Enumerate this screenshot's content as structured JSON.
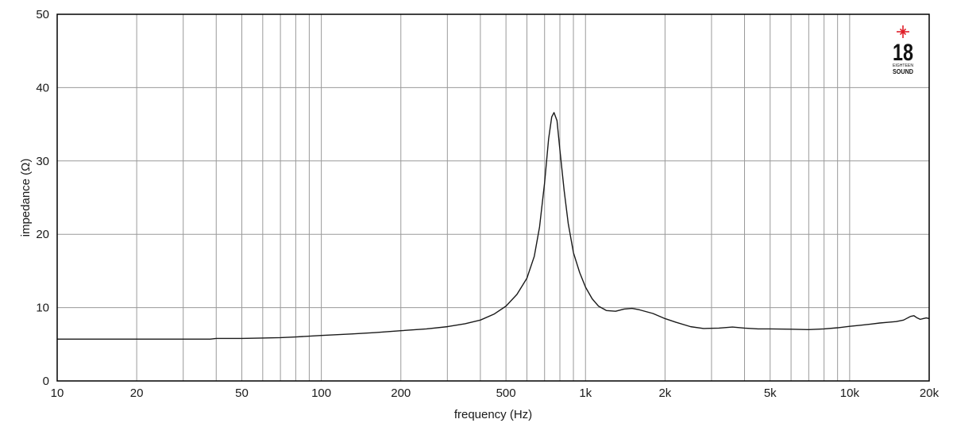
{
  "chart_data": {
    "type": "line",
    "title": "",
    "xlabel": "frequency (Hz)",
    "ylabel": "impedance (Ω)",
    "x_scale": "log",
    "xlim": [
      10,
      20000
    ],
    "ylim": [
      0,
      50
    ],
    "grid": true,
    "x_ticks": [
      {
        "value": 10,
        "label": "10"
      },
      {
        "value": 20,
        "label": "20"
      },
      {
        "value": 50,
        "label": "50"
      },
      {
        "value": 100,
        "label": "100"
      },
      {
        "value": 200,
        "label": "200"
      },
      {
        "value": 500,
        "label": "500"
      },
      {
        "value": 1000,
        "label": "1k"
      },
      {
        "value": 2000,
        "label": "2k"
      },
      {
        "value": 5000,
        "label": "5k"
      },
      {
        "value": 10000,
        "label": "10k"
      },
      {
        "value": 20000,
        "label": "20k"
      }
    ],
    "y_ticks": [
      {
        "value": 0,
        "label": "0"
      },
      {
        "value": 10,
        "label": "10"
      },
      {
        "value": 20,
        "label": "20"
      },
      {
        "value": 30,
        "label": "30"
      },
      {
        "value": 40,
        "label": "40"
      },
      {
        "value": 50,
        "label": "50"
      }
    ],
    "series": [
      {
        "color": "#1a1a1a",
        "points": [
          [
            10,
            5.7
          ],
          [
            20,
            5.7
          ],
          [
            30,
            5.7
          ],
          [
            38,
            5.7
          ],
          [
            40,
            5.8
          ],
          [
            50,
            5.8
          ],
          [
            60,
            5.85
          ],
          [
            70,
            5.9
          ],
          [
            80,
            6.0
          ],
          [
            100,
            6.2
          ],
          [
            130,
            6.4
          ],
          [
            160,
            6.6
          ],
          [
            200,
            6.85
          ],
          [
            250,
            7.1
          ],
          [
            300,
            7.4
          ],
          [
            350,
            7.8
          ],
          [
            400,
            8.3
          ],
          [
            450,
            9.1
          ],
          [
            500,
            10.2
          ],
          [
            550,
            11.8
          ],
          [
            600,
            14.0
          ],
          [
            640,
            17.0
          ],
          [
            670,
            21.0
          ],
          [
            700,
            27.0
          ],
          [
            725,
            33.0
          ],
          [
            745,
            36.0
          ],
          [
            760,
            36.6
          ],
          [
            780,
            35.5
          ],
          [
            800,
            31.5
          ],
          [
            830,
            26.0
          ],
          [
            860,
            21.5
          ],
          [
            900,
            17.5
          ],
          [
            950,
            14.8
          ],
          [
            1000,
            12.8
          ],
          [
            1060,
            11.2
          ],
          [
            1120,
            10.2
          ],
          [
            1200,
            9.6
          ],
          [
            1300,
            9.5
          ],
          [
            1400,
            9.8
          ],
          [
            1500,
            9.9
          ],
          [
            1600,
            9.7
          ],
          [
            1800,
            9.2
          ],
          [
            2000,
            8.5
          ],
          [
            2200,
            8.0
          ],
          [
            2500,
            7.4
          ],
          [
            2800,
            7.15
          ],
          [
            3200,
            7.2
          ],
          [
            3600,
            7.35
          ],
          [
            4000,
            7.2
          ],
          [
            4500,
            7.1
          ],
          [
            5000,
            7.1
          ],
          [
            6000,
            7.05
          ],
          [
            7000,
            7.0
          ],
          [
            8000,
            7.1
          ],
          [
            9000,
            7.25
          ],
          [
            10000,
            7.45
          ],
          [
            11000,
            7.6
          ],
          [
            12000,
            7.75
          ],
          [
            13000,
            7.9
          ],
          [
            14000,
            8.0
          ],
          [
            15000,
            8.1
          ],
          [
            16000,
            8.3
          ],
          [
            17000,
            8.8
          ],
          [
            17500,
            8.9
          ],
          [
            18000,
            8.6
          ],
          [
            18500,
            8.4
          ],
          [
            19000,
            8.5
          ],
          [
            19500,
            8.6
          ],
          [
            20000,
            8.5
          ]
        ]
      }
    ]
  },
  "logo": {
    "number": "18",
    "line1": "EIGHTEEN",
    "line2": "SOUND",
    "accent_color": "#e0202a"
  }
}
